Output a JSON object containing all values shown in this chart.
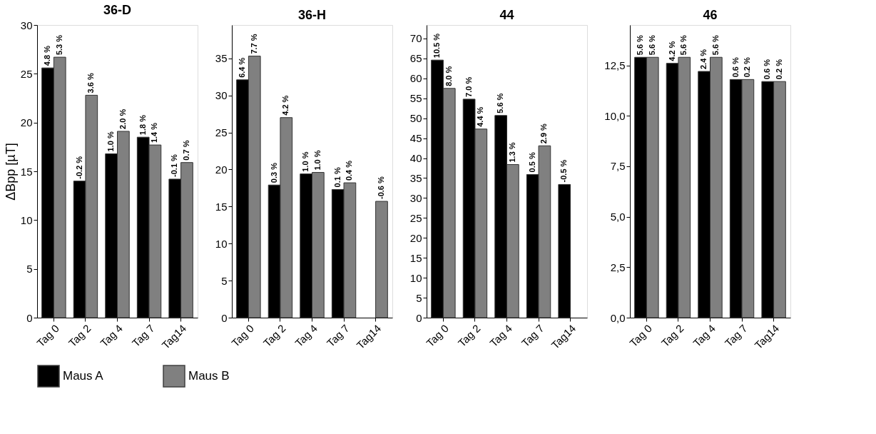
{
  "chart_data": [
    {
      "type": "bar",
      "title": "36-D",
      "ylabel": "ΔBpp [µT]",
      "categories": [
        "Tag 0",
        "Tag 2",
        "Tag 4",
        "Tag 7",
        "Tag14"
      ],
      "ylim": [
        0,
        30
      ],
      "yticks": [
        0,
        5,
        10,
        15,
        20,
        25,
        30
      ],
      "grid": false,
      "legend": "bottom",
      "series": [
        {
          "name": "Maus A",
          "color": "#000000",
          "values": [
            25.6,
            14.0,
            16.8,
            18.5,
            14.2
          ]
        },
        {
          "name": "Maus B",
          "color": "#808080",
          "values": [
            26.7,
            22.8,
            19.1,
            17.7,
            15.9
          ]
        }
      ],
      "annotations": [
        {
          "text": "4.8 %",
          "x": "Tag 0",
          "y": 25.6
        },
        {
          "text": "-0.2 %",
          "x": "Tag 2",
          "y": 14.0
        },
        {
          "text": "1.0 %",
          "x": "Tag 4",
          "y": 16.8
        },
        {
          "text": "1.8 %",
          "x": "Tag 7",
          "y": 18.5
        },
        {
          "text": "-0.1 %",
          "x": "Tag14",
          "y": 14.2
        },
        {
          "text": "5.3 %",
          "x": "Tag 0",
          "y": 26.7
        },
        {
          "text": "3.6 %",
          "x": "Tag 2",
          "y": 22.8
        },
        {
          "text": "2.0 %",
          "x": "Tag 4",
          "y": 19.1
        },
        {
          "text": "1.4 %",
          "x": "Tag 7",
          "y": 17.7
        },
        {
          "text": "0.7 %",
          "x": "Tag14",
          "y": 15.9
        }
      ]
    },
    {
      "type": "bar",
      "title": "36-H",
      "categories": [
        "Tag 0",
        "Tag 2",
        "Tag 4",
        "Tag 7",
        "Tag14"
      ],
      "ylim": [
        0,
        39.5
      ],
      "yticks": [
        0,
        5,
        10,
        15,
        20,
        25,
        30,
        35
      ],
      "grid": false,
      "series": [
        {
          "name": "Maus A",
          "color": "#000000",
          "values": [
            32.1,
            17.9,
            19.4,
            17.3,
            null
          ]
        },
        {
          "name": "Maus B",
          "color": "#808080",
          "values": [
            35.3,
            27.0,
            19.6,
            18.2,
            15.7
          ]
        }
      ],
      "annotations": [
        {
          "text": "6.4 %",
          "x": "Tag 0",
          "y": 32.1
        },
        {
          "text": "0.3 %",
          "x": "Tag 2",
          "y": 17.9
        },
        {
          "text": "1.0 %",
          "x": "Tag 4",
          "y": 19.4
        },
        {
          "text": "0.1 %",
          "x": "Tag 7",
          "y": 17.3
        },
        {
          "text": "7.7 %",
          "x": "Tag 0",
          "y": 35.3
        },
        {
          "text": "4.2 %",
          "x": "Tag 2",
          "y": 27.0
        },
        {
          "text": "1.0 %",
          "x": "Tag 4",
          "y": 19.6
        },
        {
          "text": "0.4 %",
          "x": "Tag 7",
          "y": 18.2
        },
        {
          "text": "-0.6 %",
          "x": "Tag14",
          "y": 15.7
        }
      ]
    },
    {
      "type": "bar",
      "title": "44",
      "categories": [
        "Tag 0",
        "Tag 2",
        "Tag 4",
        "Tag 7",
        "Tag14"
      ],
      "ylim": [
        0,
        73.4
      ],
      "yticks": [
        0,
        5,
        10,
        15,
        20,
        25,
        30,
        35,
        40,
        45,
        50,
        55,
        60,
        65,
        70
      ],
      "grid": false,
      "series": [
        {
          "name": "Maus A",
          "color": "#000000",
          "values": [
            64.6,
            54.8,
            50.7,
            35.9,
            33.4
          ]
        },
        {
          "name": "Maus B",
          "color": "#808080",
          "values": [
            57.5,
            47.3,
            38.4,
            43.1,
            null
          ]
        }
      ],
      "annotations": [
        {
          "text": "10.5 %",
          "x": "Tag 0",
          "y": 64.6
        },
        {
          "text": "7.0 %",
          "x": "Tag 2",
          "y": 54.8
        },
        {
          "text": "5.6 %",
          "x": "Tag 4",
          "y": 50.7
        },
        {
          "text": "0.5 %",
          "x": "Tag 7",
          "y": 35.9
        },
        {
          "text": "-0.5 %",
          "x": "Tag14",
          "y": 33.4
        },
        {
          "text": "8.0 %",
          "x": "Tag 0",
          "y": 57.5
        },
        {
          "text": "4.4 %",
          "x": "Tag 2",
          "y": 47.3
        },
        {
          "text": "1.3 %",
          "x": "Tag 4",
          "y": 38.4
        },
        {
          "text": "2.9 %",
          "x": "Tag 7",
          "y": 43.1
        }
      ]
    },
    {
      "type": "bar",
      "title": "46",
      "categories": [
        "Tag 0",
        "Tag 2",
        "Tag 4",
        "Tag 7",
        "Tag14"
      ],
      "ylim": [
        0,
        14.5
      ],
      "yticks": [
        {
          "value": 0,
          "label": "0,0"
        },
        {
          "value": 2.5,
          "label": "2,5"
        },
        {
          "value": 5,
          "label": "5,0"
        },
        {
          "value": 7.5,
          "label": "7,5"
        },
        {
          "value": 10,
          "label": "10,0"
        },
        {
          "value": 12.5,
          "label": "12,5"
        }
      ],
      "grid": false,
      "series": [
        {
          "name": "Maus A",
          "color": "#000000",
          "values": [
            12.9,
            12.6,
            12.2,
            11.8,
            11.7
          ]
        },
        {
          "name": "Maus B",
          "color": "#808080",
          "values": [
            12.9,
            12.9,
            12.9,
            11.8,
            11.7
          ]
        }
      ],
      "annotations": [
        {
          "text": "5.6 %",
          "x": "Tag 0",
          "y": 12.9
        },
        {
          "text": "4.2 %",
          "x": "Tag 2",
          "y": 12.6
        },
        {
          "text": "2.4 %",
          "x": "Tag 4",
          "y": 12.2
        },
        {
          "text": "0.6 %",
          "x": "Tag 7",
          "y": 11.8
        },
        {
          "text": "0.6 %",
          "x": "Tag14",
          "y": 11.7
        },
        {
          "text": "5.6 %",
          "x": "Tag 0",
          "y": 12.9
        },
        {
          "text": "5.6 %",
          "x": "Tag 2",
          "y": 12.9
        },
        {
          "text": "5.6 %",
          "x": "Tag 4",
          "y": 12.9
        },
        {
          "text": "0.2 %",
          "x": "Tag 7",
          "y": 11.8
        },
        {
          "text": "0.2 %",
          "x": "Tag14",
          "y": 11.7
        }
      ]
    }
  ]
}
